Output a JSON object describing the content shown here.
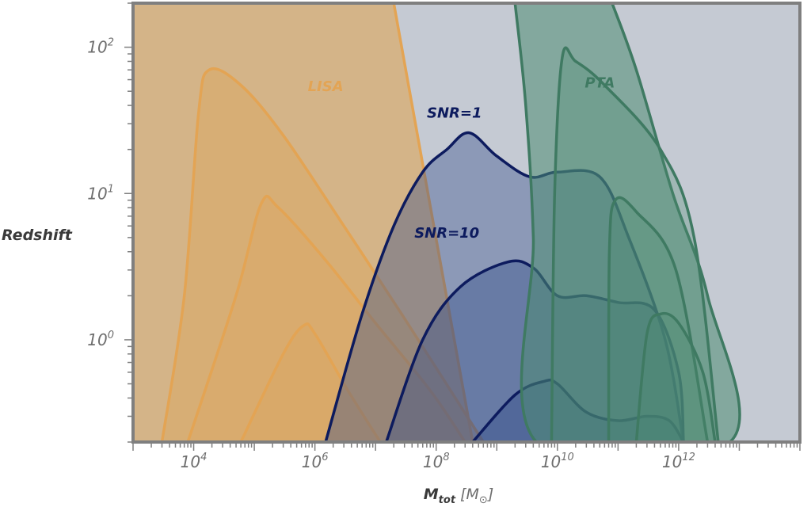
{
  "chart_data": {
    "type": "area",
    "x_scale": "log",
    "y_scale": "log",
    "xlim": [
      1000,
      100000000000000
    ],
    "ylim": [
      0.2,
      200
    ],
    "grid": false,
    "x_ticks": [
      {
        "value": 10000,
        "base": "10",
        "exp": "4"
      },
      {
        "value": 1000000,
        "base": "10",
        "exp": "6"
      },
      {
        "value": 100000000,
        "base": "10",
        "exp": "8"
      },
      {
        "value": 10000000000,
        "base": "10",
        "exp": "10"
      },
      {
        "value": 1000000000000,
        "base": "10",
        "exp": "12"
      }
    ],
    "y_ticks": [
      {
        "value": 1,
        "base": "10",
        "exp": "0"
      },
      {
        "value": 10,
        "base": "10",
        "exp": "1"
      },
      {
        "value": 100,
        "base": "10",
        "exp": "2"
      }
    ],
    "xlabel": {
      "main": "M",
      "sub": "tot",
      "unit_open": " [M",
      "unit_sym": "⊙",
      "unit_close": "]"
    },
    "ylabel": "Redshift",
    "colors": {
      "background": "#c5cad3",
      "frame": "#7f7f7f",
      "lisa": "#e3a454",
      "lisa_fill": "#dca760",
      "snr": "#0d1b5e",
      "snr_fill": "#2f4a8a",
      "pta": "#3f7a62",
      "pta_fill": "#4d8c72"
    },
    "annotations": [
      {
        "text": "LISA",
        "color": "lisa",
        "x": 1500000,
        "y": 50
      },
      {
        "text": "SNR=1",
        "color": "snr",
        "x": 200000000,
        "y": 33
      },
      {
        "text": "SNR=10",
        "color": "snr",
        "x": 150000000,
        "y": 5
      },
      {
        "text": "PTA",
        "color": "pta",
        "x": 50000000000,
        "y": 53
      }
    ],
    "regions": [
      {
        "name": "LISA",
        "kind": "filled",
        "fill": "lisa_fill",
        "opacity": 0.65,
        "stroke": "lisa",
        "width": 3.5,
        "points": [
          [
            1000,
            0.2
          ],
          [
            1000,
            200
          ],
          [
            20000000,
            200
          ],
          [
            400000000,
            0.2
          ]
        ]
      },
      {
        "name": "LISA",
        "kind": "filled",
        "fill": "lisa_fill",
        "opacity": 0.45,
        "stroke": "lisa",
        "width": 3.5,
        "points": [
          [
            3000,
            0.2
          ],
          [
            7000,
            2
          ],
          [
            12000,
            35
          ],
          [
            18000,
            70
          ],
          [
            60000,
            55
          ],
          [
            300000,
            25
          ],
          [
            3000000,
            6
          ],
          [
            30000000,
            1.4
          ],
          [
            600000000,
            0.2
          ]
        ]
      },
      {
        "name": "LISA",
        "kind": "filled",
        "fill": "lisa_fill",
        "opacity": 0.35,
        "stroke": "lisa",
        "width": 3.5,
        "points": [
          [
            8000,
            0.2
          ],
          [
            50000,
            2
          ],
          [
            130000,
            8.5
          ],
          [
            250000,
            8
          ],
          [
            1500000,
            3.5
          ],
          [
            10000000,
            1.3
          ],
          [
            80000000,
            0.45
          ],
          [
            300000000,
            0.2
          ]
        ]
      },
      {
        "name": "LISA",
        "kind": "filled",
        "fill": "lisa_fill",
        "opacity": 0.3,
        "stroke": "lisa",
        "width": 3.5,
        "points": [
          [
            60000,
            0.2
          ],
          [
            300000,
            0.8
          ],
          [
            650000,
            1.25
          ],
          [
            1000000,
            1.1
          ],
          [
            3500000,
            0.45
          ],
          [
            12000000,
            0.2
          ]
        ]
      },
      {
        "name": "SNR=1",
        "kind": "filled",
        "fill": "snr_fill",
        "opacity": 0.38,
        "stroke": "snr",
        "width": 3.5,
        "points": [
          [
            1500000,
            0.2
          ],
          [
            6000000,
            1.5
          ],
          [
            20000000,
            6
          ],
          [
            60000000,
            14
          ],
          [
            150000000,
            20
          ],
          [
            350000000,
            26
          ],
          [
            1000000000,
            18
          ],
          [
            3500000000,
            13
          ],
          [
            10000000000,
            14
          ],
          [
            50000000000,
            13
          ],
          [
            150000000000,
            5
          ],
          [
            600000000000,
            1
          ],
          [
            1200000000000,
            0.2
          ]
        ]
      },
      {
        "name": "SNR=10",
        "kind": "filled",
        "fill": "snr_fill",
        "opacity": 0.38,
        "stroke": "snr",
        "width": 3.5,
        "points": [
          [
            15000000,
            0.2
          ],
          [
            60000000,
            1
          ],
          [
            250000000,
            2.3
          ],
          [
            1500000000,
            3.4
          ],
          [
            4000000000,
            3.1
          ],
          [
            10000000000,
            2
          ],
          [
            30000000000,
            2
          ],
          [
            100000000000,
            1.8
          ],
          [
            400000000000,
            1.6
          ],
          [
            1000000000000,
            0.6
          ],
          [
            1200000000000,
            0.2
          ]
        ]
      },
      {
        "name": "SNR=10",
        "kind": "filled",
        "fill": "snr_fill",
        "opacity": 0.38,
        "stroke": "snr",
        "width": 3.5,
        "points": [
          [
            400000000,
            0.2
          ],
          [
            2000000000,
            0.42
          ],
          [
            6000000000,
            0.52
          ],
          [
            10000000000,
            0.5
          ],
          [
            30000000000,
            0.32
          ],
          [
            100000000000,
            0.28
          ],
          [
            300000000000,
            0.3
          ],
          [
            700000000000,
            0.28
          ],
          [
            1200000000000,
            0.2
          ]
        ]
      },
      {
        "name": "PTA",
        "kind": "filled",
        "fill": "pta_fill",
        "opacity": 0.55,
        "stroke": "pta",
        "width": 3.5,
        "points": [
          [
            2000000000,
            200
          ],
          [
            3000000000,
            40
          ],
          [
            4000000000,
            5
          ],
          [
            4500000000,
            0.2
          ],
          [
            7000000000000,
            0.2
          ],
          [
            3000000000000,
            2
          ],
          [
            800000000000,
            10
          ],
          [
            200000000000,
            70
          ],
          [
            80000000000,
            200
          ]
        ]
      },
      {
        "name": "PTA",
        "kind": "filled",
        "fill": "pta_fill",
        "opacity": 0.3,
        "stroke": "pta",
        "width": 3.5,
        "points": [
          [
            8000000000,
            0.2
          ],
          [
            9000000000,
            10
          ],
          [
            12000000000,
            85
          ],
          [
            20000000000,
            80
          ],
          [
            60000000000,
            55
          ],
          [
            500000000000,
            20
          ],
          [
            1800000000000,
            5
          ],
          [
            4500000000000,
            0.2
          ]
        ]
      },
      {
        "name": "PTA",
        "kind": "filled",
        "fill": "pta_fill",
        "opacity": 0.3,
        "stroke": "pta",
        "width": 3.5,
        "points": [
          [
            70000000000,
            0.2
          ],
          [
            72000000000,
            4
          ],
          [
            90000000000,
            9
          ],
          [
            200000000000,
            7.5
          ],
          [
            900000000000,
            3
          ],
          [
            3000000000000,
            0.2
          ]
        ]
      },
      {
        "name": "PTA",
        "kind": "filled",
        "fill": "pta_fill",
        "opacity": 0.3,
        "stroke": "pta",
        "width": 3.5,
        "points": [
          [
            200000000000,
            0.2
          ],
          [
            300000000000,
            1.1
          ],
          [
            500000000000,
            1.5
          ],
          [
            1000000000000,
            1.3
          ],
          [
            2500000000000,
            0.6
          ],
          [
            4000000000000,
            0.2
          ]
        ]
      }
    ]
  }
}
